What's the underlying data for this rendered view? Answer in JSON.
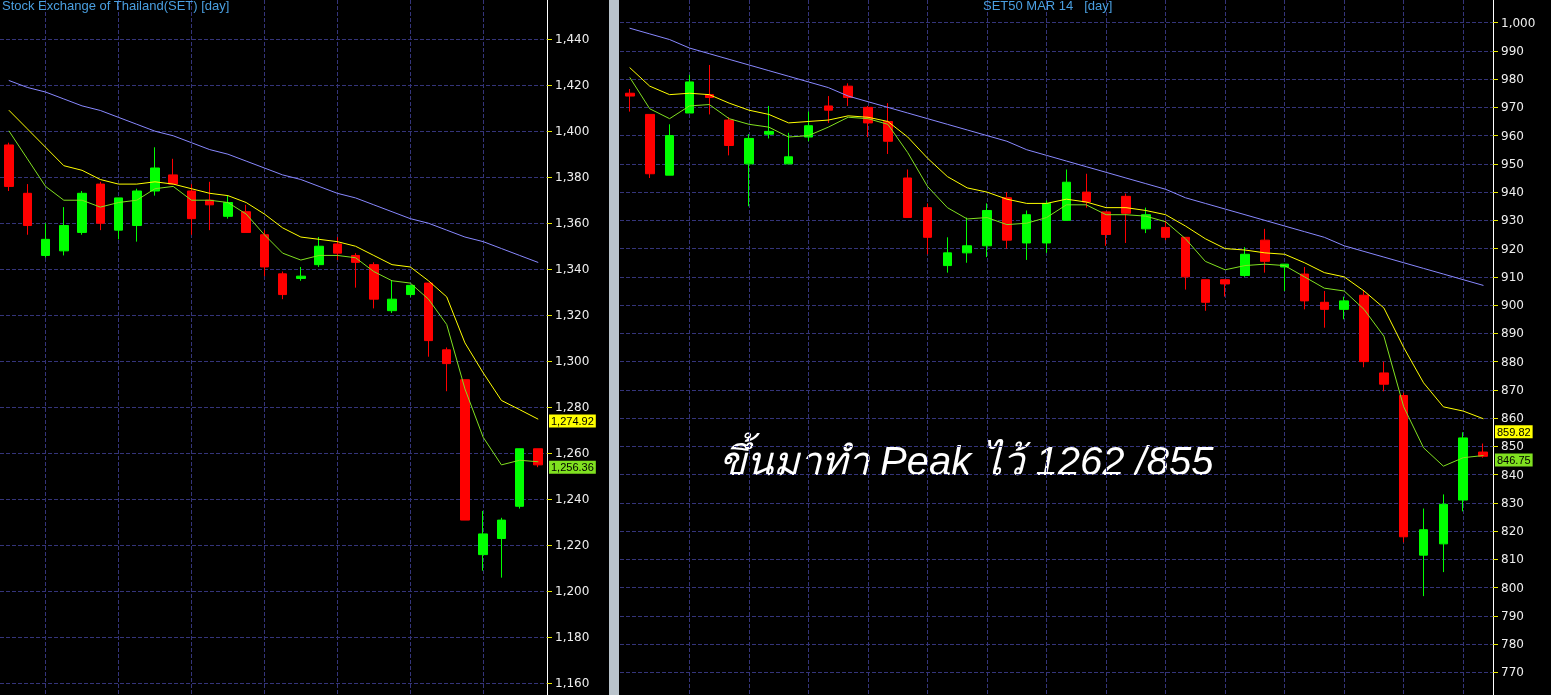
{
  "chart_data": [
    {
      "type": "candlestick",
      "title": "Stock Exchange of Thailand(SET) [day]",
      "categories": [
        null,
        null,
        null,
        null,
        null,
        null,
        null,
        null,
        null,
        null,
        null,
        null,
        null,
        null,
        null,
        null,
        null,
        null,
        null,
        null,
        null,
        null,
        null,
        null,
        null,
        null,
        null,
        null,
        null,
        null
      ],
      "ohlc": [
        [
          1394,
          1395,
          1374,
          1376
        ],
        [
          1373,
          1377,
          1355,
          1359
        ],
        [
          1346,
          1360,
          1345,
          1353
        ],
        [
          1348,
          1367,
          1346,
          1359
        ],
        [
          1356,
          1374,
          1355,
          1373
        ],
        [
          1377,
          1378,
          1357,
          1360
        ],
        [
          1357,
          1371,
          1353,
          1371
        ],
        [
          1359,
          1375,
          1352,
          1374
        ],
        [
          1374,
          1393,
          1372,
          1384
        ],
        [
          1381,
          1388,
          1377,
          1377
        ],
        [
          1374,
          1377,
          1355,
          1362
        ],
        [
          1370,
          1378,
          1357,
          1368
        ],
        [
          1363,
          1372,
          1362,
          1369
        ],
        [
          1365,
          1368,
          1356,
          1356
        ],
        [
          1355,
          1357,
          1337,
          1341
        ],
        [
          1338,
          1339,
          1327,
          1329
        ],
        [
          1336,
          1341,
          1335,
          1337
        ],
        [
          1342,
          1354,
          1341,
          1350
        ],
        [
          1351,
          1354,
          1344,
          1347
        ],
        [
          1346,
          1347,
          1332,
          1343
        ],
        [
          1342,
          1343,
          1323,
          1327
        ],
        [
          1322,
          1335,
          1321,
          1327
        ],
        [
          1329,
          1333,
          1328,
          1333
        ],
        [
          1334,
          1334,
          1302,
          1309
        ],
        [
          1305,
          1306,
          1287,
          1299
        ],
        [
          1292,
          1292,
          1231,
          1231
        ],
        [
          1216,
          1235,
          1209,
          1225
        ],
        [
          1223,
          1232,
          1206,
          1231
        ],
        [
          1237,
          1262,
          1236,
          1262
        ],
        [
          1262,
          1262,
          1254,
          1255
        ]
      ],
      "colors": [
        "#ff0000",
        "#ff0000",
        "#00ff00",
        "#00ff00",
        "#00ff00",
        "#ff0000",
        "#00ff00",
        "#00ff00",
        "#00ff00",
        "#ff0000",
        "#ff0000",
        "#ff0000",
        "#00ff00",
        "#ff0000",
        "#ff0000",
        "#ff0000",
        "#00ff00",
        "#00ff00",
        "#ff0000",
        "#ff0000",
        "#ff0000",
        "#00ff00",
        "#00ff00",
        "#ff0000",
        "#ff0000",
        "#ff0000",
        "#00ff00",
        "#00ff00",
        "#00ff00",
        "#ff0000"
      ],
      "series": [
        {
          "type": "line",
          "color": "#8888ff",
          "values": [
            1422,
            1419,
            1417,
            1414,
            1411,
            1409,
            1406,
            1403,
            1400,
            1398,
            1395,
            1392,
            1390,
            1387,
            1384,
            1381,
            1379,
            1376,
            1373,
            1371,
            1368,
            1365,
            1362,
            1360,
            1357,
            1354,
            1352,
            1349,
            1346,
            1343
          ]
        },
        {
          "type": "line",
          "color": "#ffff00",
          "values": [
            1409,
            1401,
            1393,
            1385,
            1383,
            1379,
            1377,
            1377,
            1378,
            1377,
            1375,
            1373,
            1372,
            1369,
            1364,
            1358,
            1354,
            1353,
            1352,
            1350,
            1346,
            1342,
            1341,
            1335,
            1328,
            1308,
            1295,
            1283,
            1279,
            1274.92
          ],
          "value_labels": [
            null,
            null,
            null,
            null,
            null,
            null,
            null,
            null,
            null,
            null,
            null,
            null,
            null,
            null,
            null,
            null,
            null,
            null,
            null,
            null,
            null,
            null,
            null,
            null,
            null,
            null,
            null,
            null,
            null,
            "1,274.92"
          ]
        },
        {
          "type": "line",
          "color": "#80e020",
          "values": [
            1400,
            1388,
            1376,
            1370,
            1370,
            1367,
            1369,
            1370,
            1375,
            1376,
            1370,
            1370,
            1369,
            1364,
            1355,
            1347,
            1344,
            1346,
            1346,
            1345,
            1339,
            1335,
            1334,
            1327,
            1316,
            1288,
            1267,
            1255,
            1257,
            1256.36
          ],
          "value_labels": [
            null,
            null,
            null,
            null,
            null,
            null,
            null,
            null,
            null,
            null,
            null,
            null,
            null,
            null,
            null,
            null,
            null,
            null,
            null,
            null,
            null,
            null,
            null,
            null,
            null,
            null,
            null,
            null,
            null,
            "1,256.36"
          ]
        }
      ],
      "ylim": [
        1155,
        1457
      ],
      "yticks": [
        {
          "value": 1160,
          "label": "1,160"
        },
        {
          "value": 1180,
          "label": "1,180"
        },
        {
          "value": 1200,
          "label": "1,200"
        },
        {
          "value": 1220,
          "label": "1,220"
        },
        {
          "value": 1240,
          "label": "1,240"
        },
        {
          "value": 1260,
          "label": "1,260"
        },
        {
          "value": 1280,
          "label": "1,280"
        },
        {
          "value": 1300,
          "label": "1,300"
        },
        {
          "value": 1320,
          "label": "1,320"
        },
        {
          "value": 1340,
          "label": "1,340"
        },
        {
          "value": 1360,
          "label": "1,360"
        },
        {
          "value": 1380,
          "label": "1,380"
        },
        {
          "value": 1400,
          "label": "1,400"
        },
        {
          "value": 1420,
          "label": "1,420"
        },
        {
          "value": 1440,
          "label": "1,440"
        }
      ],
      "grid": true,
      "marker": "none",
      "tick_labels": "y"
    },
    {
      "type": "candlestick",
      "title": "SET50 MAR 14   [day]",
      "categories": [
        null,
        null,
        null,
        null,
        null,
        null,
        null,
        null,
        null,
        null,
        null,
        null,
        null,
        null,
        null,
        null,
        null,
        null,
        null,
        null,
        null,
        null,
        null,
        null,
        null,
        null,
        null,
        null,
        null,
        null,
        null,
        null,
        null,
        null,
        null,
        null,
        null,
        null,
        null,
        null,
        null,
        null,
        null,
        null
      ],
      "ohlc": [
        [
          975,
          976.5,
          968.5,
          974
        ],
        [
          967.5,
          967.5,
          945,
          946.5
        ],
        [
          946,
          964,
          946,
          960
        ],
        [
          968,
          981.5,
          968,
          979
        ],
        [
          974.5,
          985,
          967.5,
          973.5
        ],
        [
          965.5,
          966.5,
          953,
          956.5
        ],
        [
          950,
          960.5,
          935,
          959
        ],
        [
          960.5,
          970.5,
          959,
          961.5
        ],
        [
          950,
          961,
          950,
          952.5
        ],
        [
          959.5,
          968.5,
          958,
          963.5
        ],
        [
          970.5,
          974,
          964.5,
          969
        ],
        [
          977.5,
          978.5,
          970.5,
          973.5
        ],
        [
          970,
          970.5,
          959.5,
          964.5
        ],
        [
          965,
          971.5,
          953.5,
          958
        ],
        [
          945,
          948,
          931,
          931
        ],
        [
          934.5,
          936,
          918,
          924
        ],
        [
          914,
          924,
          911.5,
          918.5
        ],
        [
          918.5,
          931,
          915,
          921
        ],
        [
          921,
          936,
          917,
          933.5
        ],
        [
          938,
          940,
          920,
          923
        ],
        [
          922,
          933.5,
          916,
          932
        ],
        [
          922,
          937,
          918.5,
          936
        ],
        [
          930,
          948,
          930,
          943.5
        ],
        [
          940,
          946.5,
          934.5,
          936.5
        ],
        [
          933,
          933,
          921,
          925
        ],
        [
          938.5,
          939.5,
          922,
          932.5
        ],
        [
          927,
          934.5,
          925.5,
          932
        ],
        [
          927.5,
          930,
          923,
          924
        ],
        [
          924,
          924,
          905.5,
          910
        ],
        [
          909,
          909,
          898,
          901
        ],
        [
          909,
          909,
          903,
          907.5
        ],
        [
          910.5,
          920.5,
          910,
          918
        ],
        [
          923,
          927,
          911.5,
          915.5
        ],
        [
          913.5,
          914.5,
          905,
          914.5
        ],
        [
          911,
          913.5,
          898.5,
          901.5
        ],
        [
          901,
          905,
          892,
          898.5
        ],
        [
          898.5,
          903,
          895,
          901.5
        ],
        [
          903.5,
          905,
          878,
          880
        ],
        [
          876,
          880,
          869.5,
          872
        ],
        [
          868,
          869,
          816,
          818
        ],
        [
          811.5,
          828,
          797,
          820.5
        ],
        [
          815.5,
          833,
          805.5,
          829.5
        ],
        [
          831,
          855,
          827,
          853
        ],
        [
          848,
          851,
          846,
          846.5
        ]
      ],
      "colors": [
        "#ff0000",
        "#ff0000",
        "#00ff00",
        "#00ff00",
        "#ff0000",
        "#ff0000",
        "#00ff00",
        "#00ff00",
        "#00ff00",
        "#00ff00",
        "#ff0000",
        "#ff0000",
        "#ff0000",
        "#ff0000",
        "#ff0000",
        "#ff0000",
        "#00ff00",
        "#00ff00",
        "#00ff00",
        "#ff0000",
        "#00ff00",
        "#00ff00",
        "#00ff00",
        "#ff0000",
        "#ff0000",
        "#ff0000",
        "#00ff00",
        "#ff0000",
        "#ff0000",
        "#ff0000",
        "#ff0000",
        "#00ff00",
        "#ff0000",
        "#00ff00",
        "#ff0000",
        "#ff0000",
        "#00ff00",
        "#ff0000",
        "#ff0000",
        "#ff0000",
        "#00ff00",
        "#00ff00",
        "#00ff00",
        "#ff0000"
      ],
      "series": [
        {
          "type": "line",
          "color": "#8888ff",
          "values": [
            998,
            996,
            994,
            991,
            989,
            987,
            985,
            983,
            981,
            979,
            977,
            974,
            972,
            970,
            968,
            966,
            964,
            962,
            960,
            958,
            955,
            953,
            951,
            949,
            947,
            945,
            943,
            941,
            938,
            936,
            934,
            932,
            930,
            928,
            926,
            924,
            921,
            919,
            917,
            915,
            913,
            911,
            909,
            907
          ]
        },
        {
          "type": "line",
          "color": "#ffff00",
          "values": [
            984,
            977.5,
            974.5,
            975,
            974.5,
            971.5,
            969,
            967.5,
            964.5,
            965,
            965.5,
            967,
            966.5,
            965,
            959.5,
            952,
            945.5,
            941.5,
            940,
            937.5,
            936,
            936,
            937.5,
            936.5,
            934.5,
            934.5,
            933.5,
            932,
            928,
            923.5,
            920,
            919.5,
            918.5,
            918,
            915,
            911.5,
            910,
            905,
            899,
            885,
            872.5,
            864,
            862.5,
            859.82
          ],
          "value_labels": [
            null,
            null,
            null,
            null,
            null,
            null,
            null,
            null,
            null,
            null,
            null,
            null,
            null,
            null,
            null,
            null,
            null,
            null,
            null,
            null,
            null,
            null,
            null,
            null,
            null,
            null,
            null,
            null,
            null,
            null,
            null,
            null,
            null,
            null,
            null,
            null,
            null,
            null,
            null,
            null,
            null,
            null,
            null,
            "859.82"
          ]
        },
        {
          "type": "line",
          "color": "#80e020",
          "values": [
            980.5,
            969.5,
            966,
            970.5,
            971,
            966,
            964,
            963,
            959.5,
            960,
            963,
            966.5,
            966,
            964,
            954,
            942,
            934.5,
            930.5,
            931,
            928.5,
            929,
            931,
            935.5,
            935.5,
            932,
            932,
            931.5,
            929.5,
            923.5,
            915.5,
            912.5,
            914,
            914.5,
            914,
            910,
            906,
            905,
            898.5,
            889,
            864,
            849.5,
            843,
            846,
            846.75
          ],
          "value_labels": [
            null,
            null,
            null,
            null,
            null,
            null,
            null,
            null,
            null,
            null,
            null,
            null,
            null,
            null,
            null,
            null,
            null,
            null,
            null,
            null,
            null,
            null,
            null,
            null,
            null,
            null,
            null,
            null,
            null,
            null,
            null,
            null,
            null,
            null,
            null,
            null,
            null,
            null,
            null,
            null,
            null,
            null,
            null,
            "846.75"
          ]
        }
      ],
      "ylim": [
        762,
        1008
      ],
      "yticks": [
        770,
        780,
        790,
        800,
        810,
        820,
        830,
        840,
        850,
        860,
        870,
        880,
        890,
        900,
        910,
        920,
        930,
        940,
        950,
        960,
        970,
        980,
        990,
        {
          "value": 1000,
          "label": "1,000"
        }
      ],
      "grid": true,
      "marker": "none",
      "tick_labels": "y",
      "annotations": [
        "ขึ้นมาทำ Peak ไว้ 1262 /855"
      ]
    }
  ]
}
